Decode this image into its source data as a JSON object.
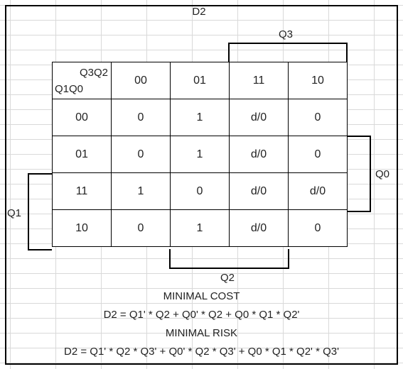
{
  "title": "D2",
  "corner": {
    "top": "Q3Q2",
    "bottom": "Q1Q0"
  },
  "columns": [
    "00",
    "01",
    "11",
    "10"
  ],
  "rows": [
    {
      "label": "00",
      "cells": [
        "0",
        "1",
        "d/0",
        "0"
      ]
    },
    {
      "label": "01",
      "cells": [
        "0",
        "1",
        "d/0",
        "0"
      ]
    },
    {
      "label": "11",
      "cells": [
        "1",
        "0",
        "d/0",
        "d/0"
      ]
    },
    {
      "label": "10",
      "cells": [
        "0",
        "1",
        "d/0",
        "0"
      ]
    }
  ],
  "brackets": {
    "top": "Q3",
    "bottom": "Q2",
    "right": "Q0",
    "left": "Q1"
  },
  "minimal_cost": {
    "heading": "MINIMAL COST",
    "equation": "D2 = Q1' * Q2 + Q0' * Q2 + Q0 * Q1 * Q2'"
  },
  "minimal_risk": {
    "heading": "MINIMAL RISK",
    "equation": "D2 = Q1' * Q2 * Q3' + Q0' * Q2 * Q3' + Q0 * Q1 * Q2' * Q3'"
  }
}
